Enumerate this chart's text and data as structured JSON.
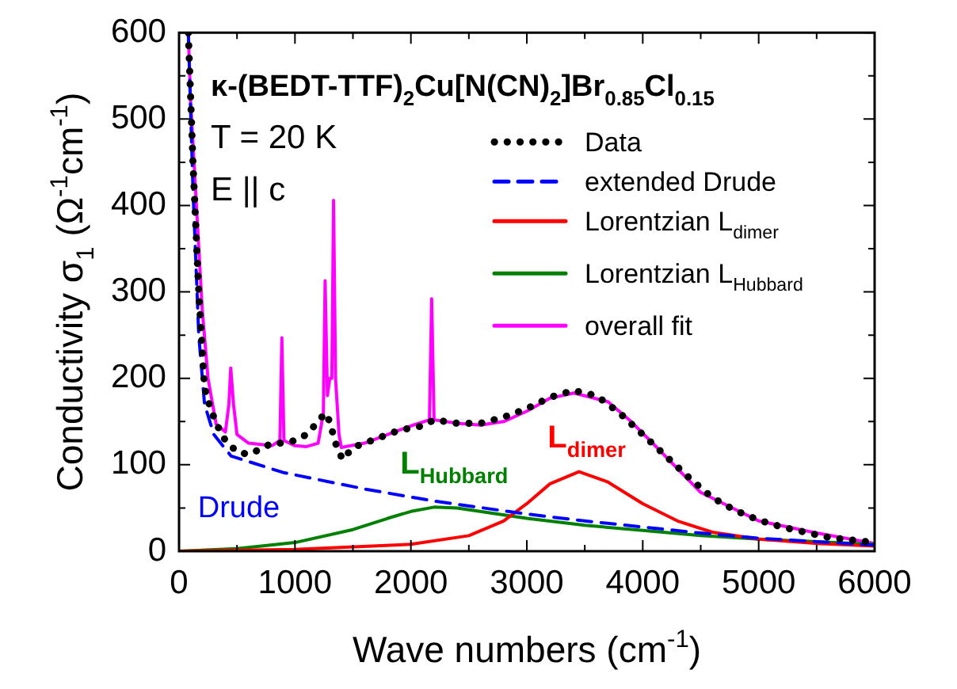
{
  "chart_data": {
    "type": "line",
    "xlabel": "Wave numbers (cm$^{-1}$)",
    "ylabel": "Conductivity σ$_{1}$ (Ω$^{-1}$cm$^{-1}$)",
    "xlim": [
      0,
      6000
    ],
    "xticks": [
      0,
      {
        "value": 500,
        "label": null
      },
      1000,
      {
        "value": 1500,
        "label": null
      },
      2000,
      {
        "value": 2500,
        "label": null
      },
      3000,
      {
        "value": 3500,
        "label": null
      },
      4000,
      {
        "value": 4500,
        "label": null
      },
      5000,
      {
        "value": 5500,
        "label": null
      },
      6000
    ],
    "ylim": [
      0,
      600
    ],
    "yticks": [
      0,
      {
        "value": 50,
        "label": null
      },
      100,
      {
        "value": 150,
        "label": null
      },
      200,
      {
        "value": 250,
        "label": null
      },
      300,
      {
        "value": 350,
        "label": null
      },
      400,
      {
        "value": 450,
        "label": null
      },
      500,
      {
        "value": 550,
        "label": null
      },
      600
    ],
    "legend": "top right",
    "grid": false,
    "series": [
      {
        "name": "Data",
        "color": "#000000",
        "line_style": "dotted",
        "x": [
          80,
          120,
          170,
          220,
          260,
          300,
          350,
          400,
          500,
          600,
          700,
          800,
          900,
          1000,
          1100,
          1200,
          1260,
          1300,
          1350,
          1410,
          1500,
          1700,
          1900,
          2100,
          2200,
          2400,
          2600,
          2800,
          3000,
          3200,
          3400,
          3600,
          3800,
          4000,
          4200,
          4400,
          4600,
          4800,
          5000,
          5200,
          5400,
          5600,
          5800,
          6000
        ],
        "values": [
          600,
          450,
          300,
          190,
          170,
          155,
          140,
          128,
          115,
          112,
          118,
          125,
          125,
          128,
          135,
          150,
          160,
          150,
          125,
          106,
          120,
          130,
          140,
          145,
          152,
          148,
          148,
          155,
          165,
          178,
          186,
          180,
          160,
          135,
          110,
          85,
          62,
          47,
          36,
          28,
          22,
          16,
          13,
          10
        ]
      },
      {
        "name": "extended Drude",
        "color": "#0000ff",
        "line_style": "dashed",
        "x": [
          80,
          120,
          170,
          220,
          300,
          450,
          900,
          1600,
          2200,
          3000,
          3500,
          4000,
          4500,
          5000,
          5500,
          6000
        ],
        "values": [
          600,
          420,
          250,
          170,
          135,
          110,
          91,
          72,
          58,
          43,
          35,
          28,
          21,
          15,
          11,
          7
        ]
      },
      {
        "name": "Lorentzian L$_{dimer}$",
        "color": "#ff0000",
        "line_style": "solid",
        "x": [
          0,
          1000,
          2000,
          2500,
          2800,
          3000,
          3200,
          3450,
          3700,
          4000,
          4300,
          4600,
          5000,
          5500,
          6000
        ],
        "values": [
          0,
          2,
          8,
          18,
          35,
          55,
          78,
          92,
          80,
          55,
          35,
          22,
          14,
          9,
          6
        ]
      },
      {
        "name": "Lorentzian L$_{Hubbard}$",
        "color": "#008000",
        "line_style": "solid",
        "x": [
          0,
          500,
          1000,
          1500,
          1800,
          2000,
          2200,
          2400,
          2700,
          3000,
          3500,
          4000,
          4500,
          5000,
          5500,
          6000
        ],
        "values": [
          0,
          3,
          10,
          25,
          38,
          46,
          51,
          50,
          44,
          38,
          30,
          24,
          18,
          14,
          11,
          8
        ]
      },
      {
        "name": "overall fit",
        "color": "#ff00ff",
        "line_style": "solid",
        "x": [
          80,
          100,
          150,
          200,
          250,
          320,
          400,
          430,
          446,
          470,
          500,
          600,
          800,
          870,
          887,
          905,
          1000,
          1100,
          1200,
          1245,
          1260,
          1280,
          1300,
          1318,
          1333,
          1350,
          1380,
          1400,
          1600,
          1800,
          2000,
          2160,
          2179,
          2200,
          2400,
          2600,
          2800,
          3000,
          3200,
          3406,
          3700,
          3900,
          4100,
          4500,
          5000,
          5500,
          6000
        ],
        "values": [
          600,
          520,
          400,
          280,
          200,
          147,
          138,
          170,
          212,
          170,
          135,
          125,
          122,
          128,
          247,
          128,
          122,
          121,
          125,
          160,
          313,
          180,
          200,
          200,
          406,
          200,
          135,
          120,
          125,
          135,
          145,
          152,
          292,
          152,
          148,
          146,
          150,
          162,
          177,
          183,
          173,
          150,
          123,
          68,
          35,
          21,
          9
        ]
      }
    ],
    "annotations": [
      "κ-(BEDT-TTF)$_{2}$Cu[N(CN)$_{2}$]Br$_{0.85}$Cl$_{0.15}$",
      "T = 20 K",
      "E || c",
      "Drude",
      "L$_{dimer}$",
      "L$_{Hubbard}$"
    ]
  }
}
